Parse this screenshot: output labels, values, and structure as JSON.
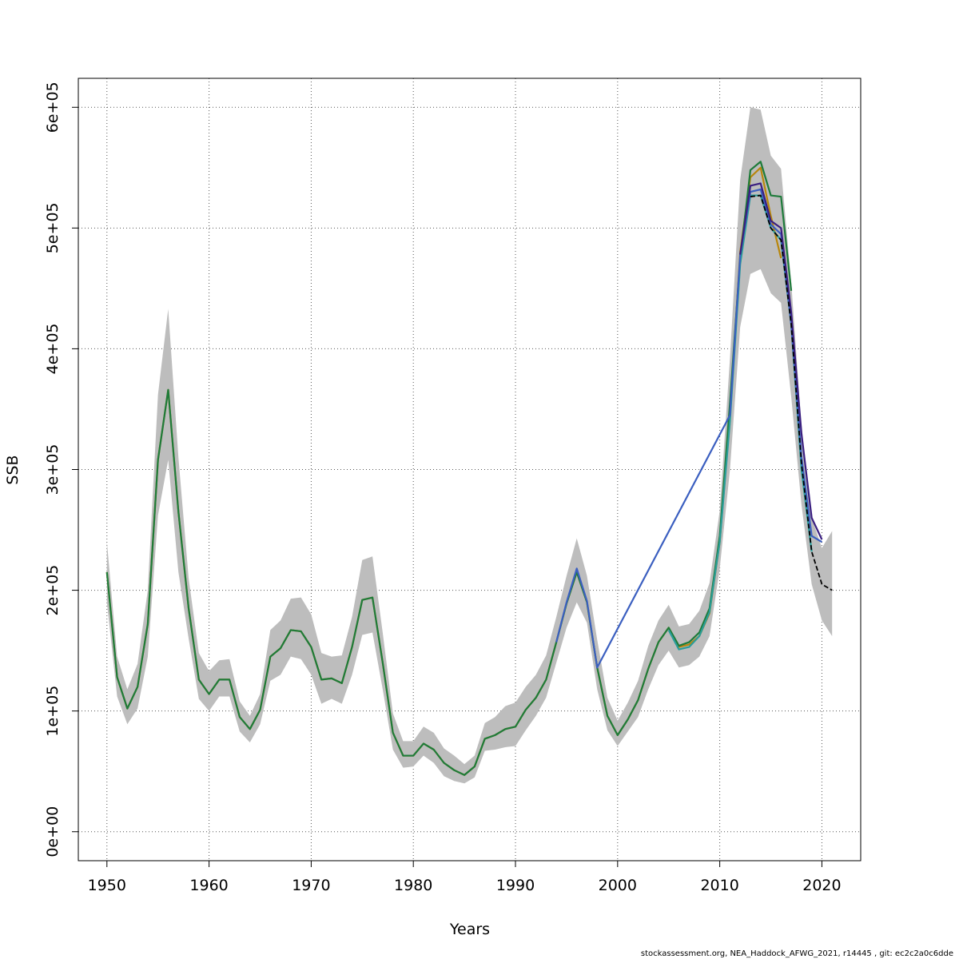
{
  "chart_data": {
    "type": "line",
    "title": "",
    "xlabel": "Years",
    "ylabel": "SSB",
    "xlim": [
      1947.2,
      2023.8
    ],
    "ylim": [
      -24000,
      624000
    ],
    "x_ticks": [
      1950,
      1960,
      1970,
      1980,
      1990,
      2000,
      2010,
      2020
    ],
    "x_tick_labels": [
      "1950",
      "1960",
      "1970",
      "1980",
      "1990",
      "2000",
      "2010",
      "2020"
    ],
    "y_ticks": [
      0,
      100000,
      200000,
      300000,
      400000,
      500000,
      600000
    ],
    "y_tick_labels": [
      "0e+00",
      "1e+05",
      "2e+05",
      "3e+05",
      "4e+05",
      "5e+05",
      "6e+05"
    ],
    "grid": true,
    "confidence_band": {
      "x": [
        1950,
        1951,
        1952,
        1953,
        1954,
        1955,
        1956,
        1957,
        1958,
        1959,
        1960,
        1961,
        1962,
        1963,
        1964,
        1965,
        1966,
        1967,
        1968,
        1969,
        1970,
        1971,
        1972,
        1973,
        1974,
        1975,
        1976,
        1977,
        1978,
        1979,
        1980,
        1981,
        1982,
        1983,
        1984,
        1985,
        1986,
        1987,
        1988,
        1989,
        1990,
        1991,
        1992,
        1993,
        1994,
        1995,
        1996,
        1997,
        1998,
        1999,
        2000,
        2001,
        2002,
        2003,
        2004,
        2005,
        2006,
        2007,
        2008,
        2009,
        2010,
        2011,
        2012,
        2013,
        2014,
        2015,
        2016,
        2017,
        2018,
        2019,
        2020,
        2021
      ],
      "lower": [
        190000,
        112000,
        89000,
        102000,
        145000,
        262000,
        308000,
        215000,
        160000,
        110000,
        100000,
        112000,
        112000,
        83000,
        74000,
        89000,
        125000,
        130000,
        145000,
        143000,
        130000,
        106000,
        110000,
        106000,
        130000,
        163000,
        165000,
        118000,
        68000,
        53000,
        54000,
        63000,
        57000,
        46000,
        42000,
        40000,
        45000,
        67000,
        68000,
        70000,
        71000,
        84000,
        96000,
        111000,
        140000,
        169000,
        190000,
        173000,
        118000,
        84000,
        71000,
        83000,
        95000,
        118000,
        138000,
        150000,
        136000,
        138000,
        145000,
        162000,
        218000,
        300000,
        418000,
        462000,
        466000,
        446000,
        438000,
        360000,
        271000,
        205000,
        175000,
        162000
      ],
      "upper": [
        240000,
        145000,
        118000,
        139000,
        200000,
        362000,
        433000,
        310000,
        210000,
        148000,
        133000,
        142000,
        143000,
        108000,
        96000,
        114000,
        167000,
        175000,
        193000,
        194000,
        180000,
        148000,
        145000,
        146000,
        178000,
        225000,
        228000,
        165000,
        98000,
        75000,
        75000,
        87000,
        82000,
        69000,
        63000,
        56000,
        63000,
        90000,
        95000,
        104000,
        107000,
        120000,
        130000,
        146000,
        178000,
        212000,
        243000,
        212000,
        159000,
        111000,
        92000,
        107000,
        125000,
        154000,
        175000,
        188000,
        170000,
        172000,
        183000,
        206000,
        266000,
        392000,
        540000,
        600000,
        598000,
        560000,
        549000,
        455000,
        335000,
        260000,
        235000,
        249000
      ]
    },
    "series": [
      {
        "color": "#B8860B",
        "x": [
          1950,
          1951,
          1952,
          1953,
          1954,
          1955,
          1956,
          1957,
          1958,
          1959,
          1960,
          1961,
          1962,
          1963,
          1964,
          1965,
          1966,
          1967,
          1968,
          1969,
          1970,
          1971,
          1972,
          1973,
          1974,
          1975,
          1976,
          1977,
          1978,
          1979,
          1980,
          1981,
          1982,
          1983,
          1984,
          1985,
          1986,
          1987,
          1988,
          1989,
          1990,
          1991,
          1992,
          1993,
          1994,
          1995,
          1996,
          1997,
          1998,
          1999,
          2000,
          2001,
          2002,
          2003,
          2004,
          2005,
          2006,
          2007,
          2008,
          2009,
          2010,
          2011,
          2012,
          2013,
          2014,
          2015,
          2016
        ],
        "y": [
          215000,
          128000,
          102000,
          120000,
          172000,
          308000,
          366000,
          265000,
          185000,
          126000,
          114000,
          126000,
          126000,
          95000,
          85000,
          101000,
          145000,
          152000,
          167000,
          166000,
          153000,
          126000,
          127000,
          123000,
          153000,
          192000,
          194000,
          140000,
          82000,
          63000,
          63000,
          73000,
          68000,
          57000,
          51000,
          47000,
          54000,
          77000,
          80000,
          85000,
          87000,
          101000,
          111000,
          126000,
          157000,
          189000,
          215000,
          190000,
          136000,
          96000,
          80000,
          93000,
          109000,
          135000,
          157000,
          169000,
          153000,
          155000,
          162000,
          181000,
          240000,
          345000,
          480000,
          542000,
          550000,
          510000,
          475000
        ]
      },
      {
        "color": "#1E7B3A",
        "x": [
          1950,
          1951,
          1952,
          1953,
          1954,
          1955,
          1956,
          1957,
          1958,
          1959,
          1960,
          1961,
          1962,
          1963,
          1964,
          1965,
          1966,
          1967,
          1968,
          1969,
          1970,
          1971,
          1972,
          1973,
          1974,
          1975,
          1976,
          1977,
          1978,
          1979,
          1980,
          1981,
          1982,
          1983,
          1984,
          1985,
          1986,
          1987,
          1988,
          1989,
          1990,
          1991,
          1992,
          1993,
          1994,
          1995,
          1996,
          1997,
          1998,
          1999,
          2000,
          2001,
          2002,
          2003,
          2004,
          2005,
          2006,
          2007,
          2008,
          2009,
          2010,
          2011,
          2012,
          2013,
          2014,
          2015,
          2016,
          2017
        ],
        "y": [
          215000,
          128000,
          102000,
          120000,
          172000,
          308000,
          366000,
          265000,
          185000,
          126000,
          114000,
          126000,
          126000,
          95000,
          85000,
          101000,
          145000,
          152000,
          167000,
          166000,
          153000,
          126000,
          127000,
          123000,
          153000,
          192000,
          194000,
          140000,
          82000,
          63000,
          63000,
          73000,
          68000,
          57000,
          51000,
          47000,
          54000,
          77000,
          80000,
          85000,
          87000,
          101000,
          111000,
          126000,
          157000,
          189000,
          215000,
          190000,
          136000,
          96000,
          80000,
          93000,
          109000,
          135000,
          157000,
          169000,
          154000,
          157000,
          165000,
          185000,
          245000,
          355000,
          475000,
          548000,
          555000,
          527000,
          526000,
          448000
        ]
      },
      {
        "color": "#2A9D9A",
        "x": [
          2005,
          2006,
          2007,
          2008,
          2009,
          2010,
          2011,
          2012,
          2013,
          2014,
          2015,
          2016,
          2017,
          2018,
          2019
        ],
        "y": [
          167000,
          151000,
          153000,
          162000,
          182000,
          240000,
          340000,
          470000,
          527000,
          527000,
          500000,
          490000,
          420000,
          300000,
          232000
        ]
      },
      {
        "color": "#3B5FC0",
        "x": [
          1994,
          1995,
          1996,
          1997,
          1998,
          2011,
          2012,
          2013,
          2014,
          2015,
          2016,
          2017,
          2018,
          2019,
          2020
        ],
        "y": [
          157000,
          190000,
          218000,
          191000,
          136000,
          345000,
          478000,
          530000,
          532000,
          503000,
          495000,
          420000,
          310000,
          245000,
          240000
        ]
      },
      {
        "color": "#3A1E80",
        "x": [
          2012,
          2013,
          2014,
          2015,
          2016,
          2017,
          2018,
          2019,
          2020
        ],
        "y": [
          478000,
          535000,
          537000,
          506000,
          500000,
          430000,
          330000,
          260000,
          242000
        ]
      },
      {
        "color": "#000000",
        "dashed": true,
        "x": [
          2013,
          2014,
          2015,
          2016,
          2017,
          2018,
          2019,
          2020,
          2021
        ],
        "y": [
          526000,
          527000,
          500000,
          490000,
          420000,
          305000,
          232000,
          205000,
          200000
        ]
      }
    ]
  },
  "footer": {
    "text": "stockassessment.org, NEA_Haddock_AFWG_2021, r14445 , git: ec2c2a0c6dde"
  }
}
